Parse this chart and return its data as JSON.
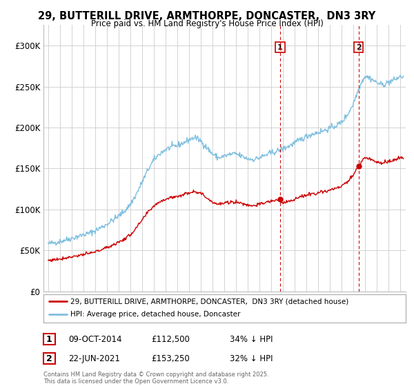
{
  "title": "29, BUTTERILL DRIVE, ARMTHORPE, DONCASTER,  DN3 3RY",
  "subtitle": "Price paid vs. HM Land Registry's House Price Index (HPI)",
  "background_color": "#ffffff",
  "plot_bg_color": "#ffffff",
  "grid_color": "#cccccc",
  "hpi_color": "#7fbfdf",
  "property_color": "#cc0000",
  "marker1_date_x": 2014.78,
  "marker2_date_x": 2021.47,
  "sale1_price": 112500,
  "sale2_price": 153250,
  "sale1_date": "09-OCT-2014",
  "sale2_date": "22-JUN-2021",
  "sale1_text": "34% ↓ HPI",
  "sale2_text": "32% ↓ HPI",
  "legend_property": "29, BUTTERILL DRIVE, ARMTHORPE, DONCASTER,  DN3 3RY (detached house)",
  "legend_hpi": "HPI: Average price, detached house, Doncaster",
  "footnote": "Contains HM Land Registry data © Crown copyright and database right 2025.\nThis data is licensed under the Open Government Licence v3.0.",
  "ylim": [
    0,
    325000
  ],
  "xlim_start": 1994.6,
  "xlim_end": 2025.5,
  "hpi_years": [
    1995,
    1995.5,
    1996,
    1996.5,
    1997,
    1997.5,
    1998,
    1998.5,
    1999,
    1999.5,
    2000,
    2000.5,
    2001,
    2001.5,
    2002,
    2002.5,
    2003,
    2003.5,
    2004,
    2004.5,
    2005,
    2005.5,
    2006,
    2006.5,
    2007,
    2007.5,
    2008,
    2008.5,
    2009,
    2009.5,
    2010,
    2010.5,
    2011,
    2011.5,
    2012,
    2012.5,
    2013,
    2013.5,
    2014,
    2014.5,
    2015,
    2015.5,
    2016,
    2016.5,
    2017,
    2017.5,
    2018,
    2018.5,
    2019,
    2019.5,
    2020,
    2020.5,
    2021,
    2021.5,
    2022,
    2022.5,
    2023,
    2023.5,
    2024,
    2024.5,
    2025
  ],
  "hpi_vals": [
    58000,
    59500,
    61000,
    63000,
    65000,
    67000,
    69000,
    71000,
    74000,
    78000,
    82000,
    87000,
    92000,
    98000,
    106000,
    118000,
    133000,
    148000,
    160000,
    168000,
    173000,
    176000,
    178000,
    181000,
    185000,
    188000,
    184000,
    176000,
    168000,
    163000,
    165000,
    167000,
    168000,
    165000,
    162000,
    161000,
    163000,
    166000,
    169000,
    171000,
    174000,
    177000,
    181000,
    185000,
    189000,
    192000,
    194000,
    196000,
    199000,
    202000,
    206000,
    215000,
    228000,
    248000,
    263000,
    260000,
    255000,
    252000,
    255000,
    258000,
    262000
  ]
}
